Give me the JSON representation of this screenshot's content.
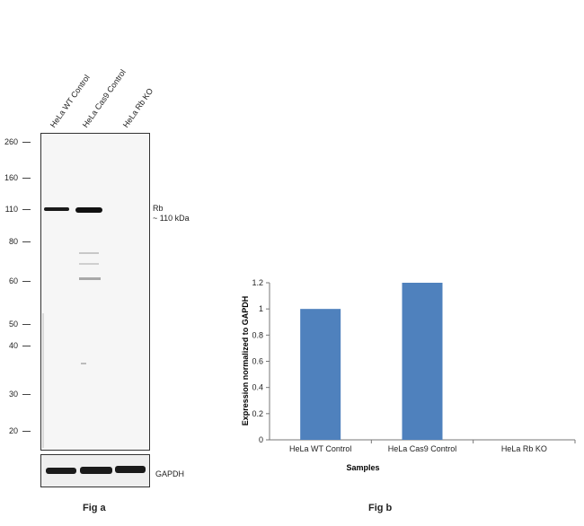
{
  "western_blot": {
    "lanes": [
      "HeLa WT Control",
      "HeLa Cas9 Control",
      "HeLa Rb KO"
    ],
    "mw_markers": [
      "260",
      "160",
      "110",
      "80",
      "60",
      "50",
      "40",
      "30",
      "20"
    ],
    "band_label": "Rb",
    "band_size": "~ 110 kDa",
    "loading_control": "GAPDH",
    "figure_label": "Fig a"
  },
  "chart_data": {
    "type": "bar",
    "categories": [
      "HeLa WT Control",
      "HeLa Cas9 Control",
      "HeLa Rb KO"
    ],
    "values": [
      1.0,
      1.2,
      0
    ],
    "title": "",
    "xlabel": "Samples",
    "ylabel": "Expression  normalized to GAPDH",
    "ylim": [
      0,
      1.2
    ],
    "yticks": [
      "0",
      "0.2",
      "0.4",
      "0.6",
      "0.8",
      "1",
      "1.2"
    ],
    "bar_color": "#4f81bd",
    "grid": false,
    "figure_label": "Fig b"
  }
}
